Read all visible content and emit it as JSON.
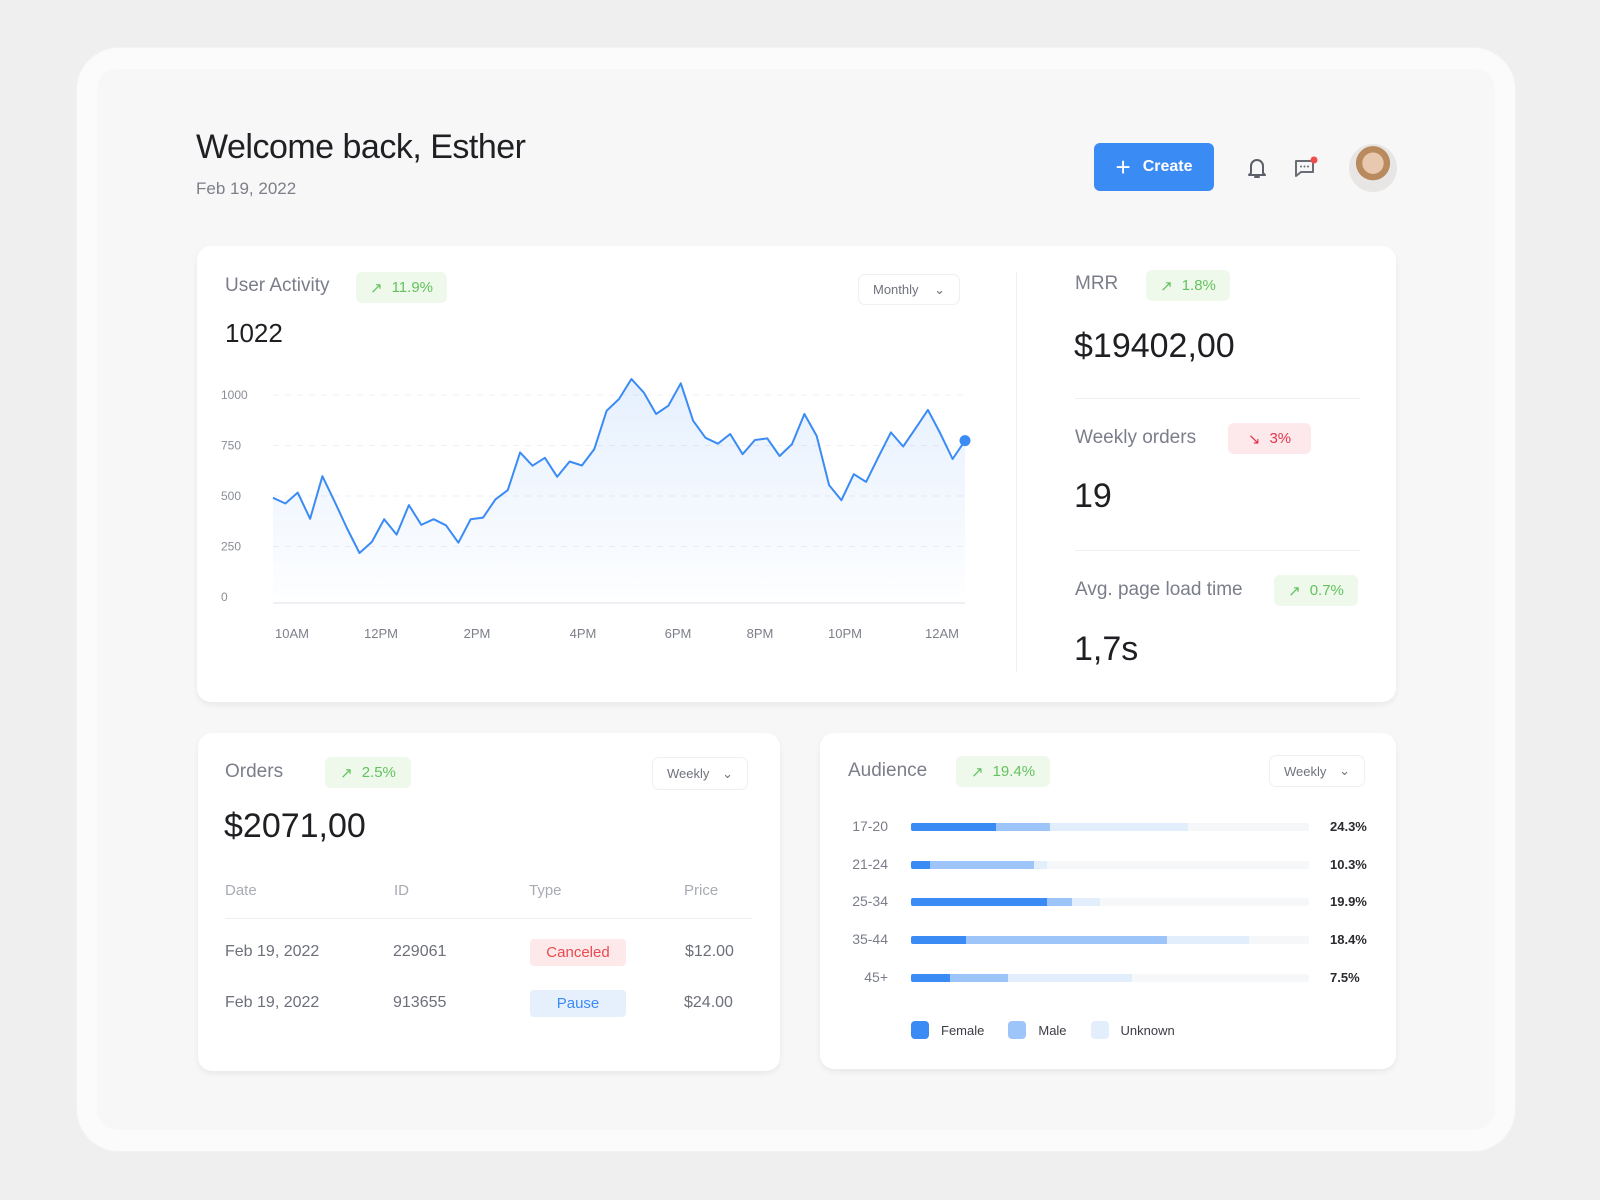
{
  "header": {
    "title": "Welcome back, Esther",
    "date": "Feb 19, 2022",
    "create_label": "Create"
  },
  "colors": {
    "accent": "#3b8bf5",
    "male": "#9ec5fa",
    "unknown": "#e3eefd",
    "positive": "#62c25d",
    "negative": "#e3354c"
  },
  "user_activity": {
    "title": "User Activity",
    "change": "11.9%",
    "trend": "up",
    "value": "1022",
    "period": "Monthly"
  },
  "chart_data": {
    "type": "area",
    "title": "",
    "xlabel": "",
    "ylabel": "",
    "ylim": [
      0,
      1000
    ],
    "yticks": [
      "1000",
      "750",
      "500",
      "250",
      "0"
    ],
    "xticks": [
      "10AM",
      "12PM",
      "2PM",
      "4PM",
      "6PM",
      "8PM",
      "10PM",
      "12AM"
    ],
    "grid": true,
    "values": [
      491,
      463,
      517,
      387,
      598,
      471,
      339,
      218,
      273,
      385,
      309,
      455,
      357,
      385,
      355,
      269,
      385,
      393,
      483,
      529,
      716,
      650,
      689,
      595,
      671,
      651,
      732,
      922,
      980,
      1079,
      1013,
      906,
      947,
      1058,
      873,
      788,
      759,
      807,
      707,
      777,
      785,
      698,
      757,
      906,
      797,
      554,
      479,
      608,
      570,
      694,
      815,
      745,
      835,
      926,
      810,
      683,
      774
    ]
  },
  "kpis": [
    {
      "label": "MRR",
      "change": "1.8%",
      "trend": "up",
      "value": "$19402,00"
    },
    {
      "label": "Weekly orders",
      "change": "3%",
      "trend": "down",
      "value": "19"
    },
    {
      "label": "Avg. page load time",
      "change": "0.7%",
      "trend": "up",
      "value": "1,7s"
    }
  ],
  "orders": {
    "title": "Orders",
    "change": "2.5%",
    "value": "$2071,00",
    "period": "Weekly",
    "columns": [
      "Date",
      "ID",
      "Type",
      "Price"
    ],
    "rows": [
      {
        "date": "Feb 19, 2022",
        "id": "229061",
        "type": "Canceled",
        "price": "$12.00"
      },
      {
        "date": "Feb 19, 2022",
        "id": "913655",
        "type": "Pause",
        "price": "$24.00"
      }
    ]
  },
  "audience": {
    "title": "Audience",
    "change": "19.4%",
    "period": "Weekly",
    "legend": [
      "Female",
      "Male",
      "Unknown"
    ],
    "rows": [
      {
        "age": "17-20",
        "pct": "24.3%",
        "female": 21.4,
        "male": 13.5,
        "unknown": 34.6
      },
      {
        "age": "21-24",
        "pct": "10.3%",
        "female": 4.7,
        "male": 26.2,
        "unknown": 3.2
      },
      {
        "age": "25-34",
        "pct": "19.9%",
        "female": 34.1,
        "male": 6.3,
        "unknown": 7.2
      },
      {
        "age": "35-44",
        "pct": "18.4%",
        "female": 13.9,
        "male": 50.5,
        "unknown": 20.5
      },
      {
        "age": "45+",
        "pct": "7.5%",
        "female": 9.8,
        "male": 14.5,
        "unknown": 31.2
      }
    ]
  }
}
